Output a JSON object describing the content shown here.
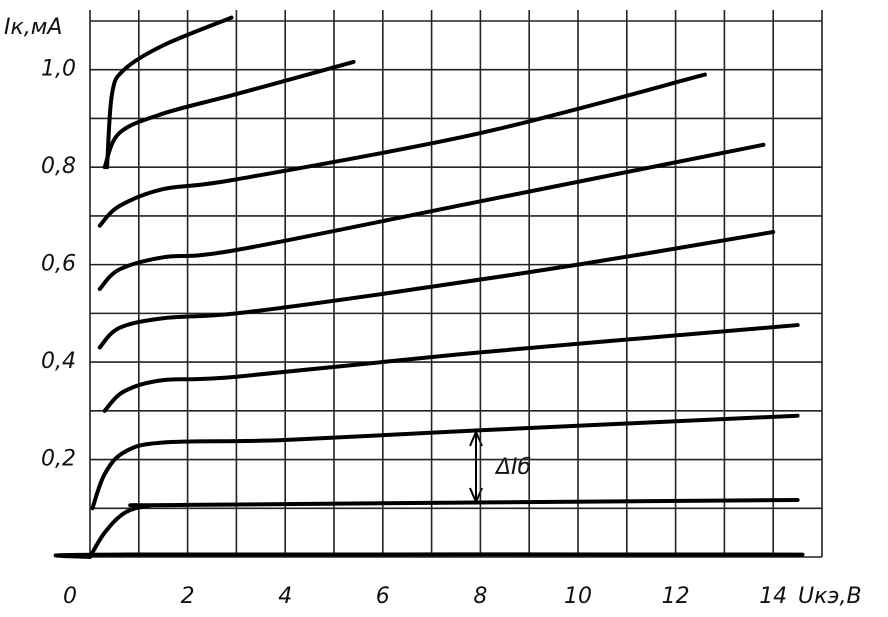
{
  "chart_data": {
    "type": "line",
    "y_label": "Iк,мА",
    "x_label": "Uкэ,В",
    "annotation": "ΔIб",
    "xlim": [
      0,
      15
    ],
    "ylim": [
      0,
      1.1
    ],
    "xticks": [
      0,
      2,
      4,
      6,
      8,
      10,
      12,
      14
    ],
    "xminorticks": [
      1,
      3,
      5,
      7,
      9,
      11,
      13,
      15
    ],
    "yticks": [
      {
        "value": 0.2,
        "label": "0,2"
      },
      {
        "value": 0.4,
        "label": "0,4"
      },
      {
        "value": 0.6,
        "label": "0,6"
      },
      {
        "value": 0.8,
        "label": "0,8"
      },
      {
        "value": 1.0,
        "label": "1,0"
      }
    ],
    "yminorticks": [
      0,
      0.1,
      0.3,
      0.5,
      0.7,
      0.9,
      1.1
    ],
    "grid": true,
    "series": [
      {
        "color": "#000000",
        "x": [
          0,
          0.5,
          14.6
        ],
        "values": [
          0,
          0.005,
          0.005
        ]
      },
      {
        "color": "#000000",
        "x": [
          0,
          0.3,
          0.7,
          1.2,
          2,
          14.5
        ],
        "values": [
          0,
          0.05,
          0.09,
          0.105,
          0.107,
          0.117
        ]
      },
      {
        "color": "#000000",
        "x": [
          0.05,
          0.3,
          0.7,
          1.5,
          4,
          8,
          14.5
        ],
        "values": [
          0.1,
          0.17,
          0.215,
          0.235,
          0.24,
          0.26,
          0.29
        ]
      },
      {
        "color": "#000000",
        "x": [
          0.3,
          0.7,
          1.5,
          3,
          8,
          14.5
        ],
        "values": [
          0.3,
          0.34,
          0.363,
          0.37,
          0.42,
          0.476
        ]
      },
      {
        "color": "#000000",
        "x": [
          0.2,
          0.6,
          1.5,
          3,
          6,
          10,
          14
        ],
        "values": [
          0.43,
          0.47,
          0.49,
          0.5,
          0.54,
          0.6,
          0.667
        ]
      },
      {
        "color": "#000000",
        "x": [
          0.2,
          0.6,
          1.5,
          3,
          8,
          13.8
        ],
        "values": [
          0.55,
          0.59,
          0.615,
          0.63,
          0.73,
          0.846
        ]
      },
      {
        "color": "#000000",
        "x": [
          0.2,
          0.6,
          1.5,
          3,
          8,
          12.6
        ],
        "values": [
          0.68,
          0.72,
          0.755,
          0.775,
          0.87,
          0.99
        ]
      },
      {
        "color": "#000000",
        "x": [
          0.3,
          0.6,
          1.5,
          3,
          5.4
        ],
        "values": [
          0.8,
          0.87,
          0.91,
          0.95,
          1.016
        ]
      },
      {
        "color": "#000000",
        "x": [
          0.35,
          0.45,
          0.7,
          1.5,
          2.9
        ],
        "values": [
          0.8,
          0.95,
          1.0,
          1.05,
          1.107
        ]
      }
    ]
  }
}
